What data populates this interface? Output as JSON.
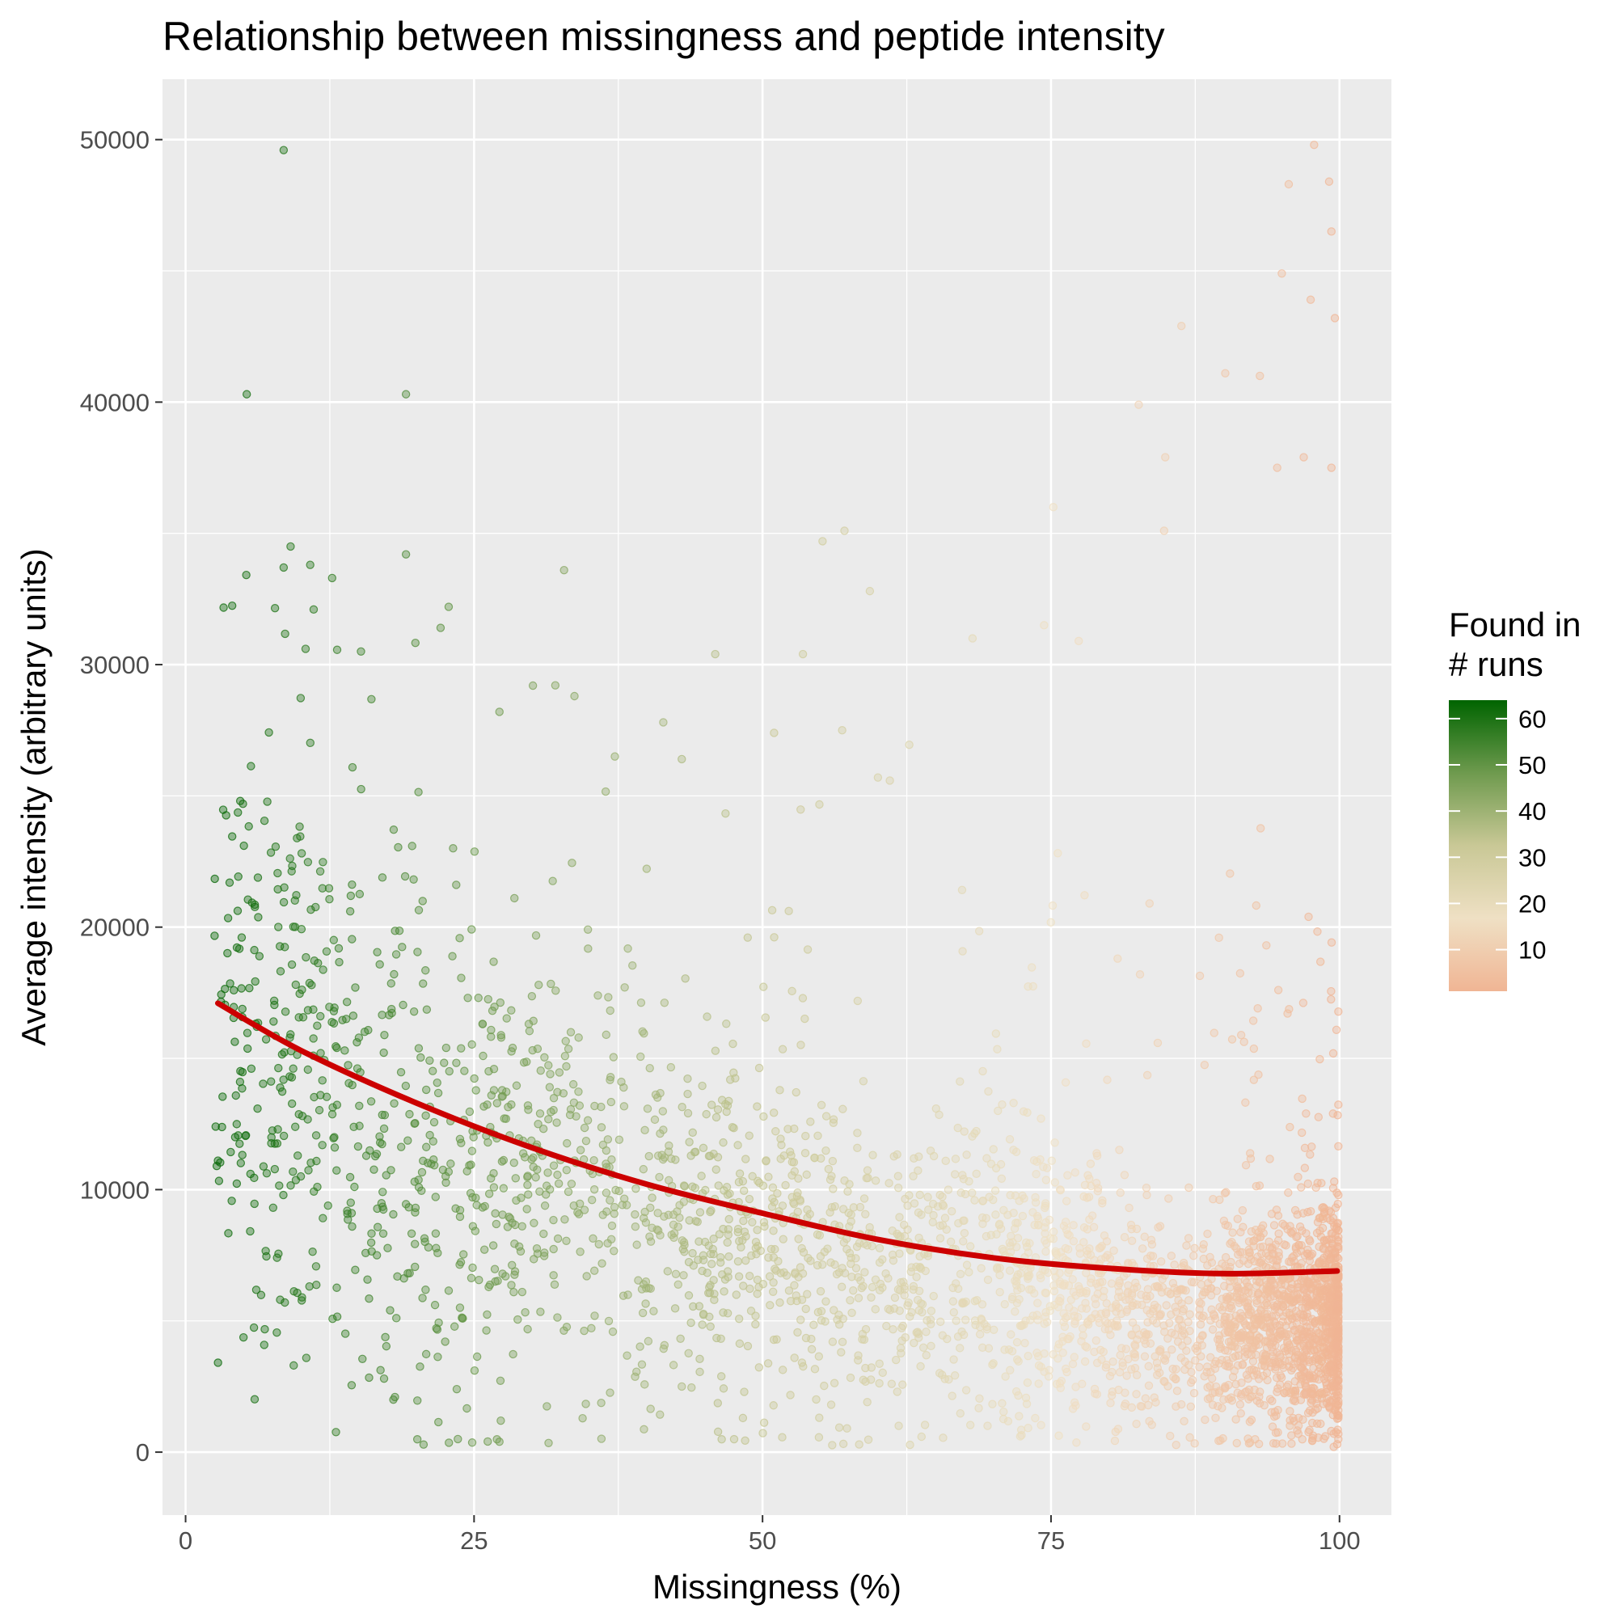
{
  "chart_data": {
    "type": "scatter",
    "title": "Relationship between missingness and peptide intensity",
    "xlabel": "Missingness (%)",
    "ylabel": "Average intensity (arbitrary units)",
    "xlim": [
      -2,
      104.5
    ],
    "ylim": [
      -2400,
      52300
    ],
    "x_ticks": [
      0,
      25,
      50,
      75,
      100
    ],
    "y_ticks": [
      0,
      10000,
      20000,
      30000,
      40000,
      50000
    ],
    "grid": true,
    "background": "#EBEBEB",
    "legend": {
      "title_lines": [
        "Found in",
        "# runs"
      ],
      "position": "right",
      "range": [
        1,
        64
      ],
      "ticks": [
        10,
        20,
        30,
        40,
        50,
        60
      ],
      "colors": [
        "#F0B594",
        "#EFE0C4",
        "#C9C896",
        "#6E9A4E",
        "#006400"
      ]
    },
    "points": {
      "color_encoding": "runs found (green = many, peach = few)",
      "alpha": 0.4,
      "samples": [
        {
          "x": 8.5,
          "y": 49600
        },
        {
          "x": 5.3,
          "y": 40300
        },
        {
          "x": 19.1,
          "y": 40300
        },
        {
          "x": 9.1,
          "y": 34500
        },
        {
          "x": 8.5,
          "y": 33700
        },
        {
          "x": 10.8,
          "y": 33800
        },
        {
          "x": 12.7,
          "y": 33300
        },
        {
          "x": 19.1,
          "y": 34200
        },
        {
          "x": 32.8,
          "y": 33600
        },
        {
          "x": 22.8,
          "y": 32200
        },
        {
          "x": 11.1,
          "y": 32100
        },
        {
          "x": 22.1,
          "y": 31400
        },
        {
          "x": 15.2,
          "y": 30500
        },
        {
          "x": 10.4,
          "y": 30600
        },
        {
          "x": 45.9,
          "y": 30400
        },
        {
          "x": 53.5,
          "y": 30400
        },
        {
          "x": 57.1,
          "y": 35100
        },
        {
          "x": 55.2,
          "y": 34700
        },
        {
          "x": 59.3,
          "y": 32800
        },
        {
          "x": 75.2,
          "y": 36000
        },
        {
          "x": 74.4,
          "y": 31500
        },
        {
          "x": 77.4,
          "y": 30900
        },
        {
          "x": 68.2,
          "y": 31000
        },
        {
          "x": 82.6,
          "y": 39900
        },
        {
          "x": 84.9,
          "y": 37900
        },
        {
          "x": 84.8,
          "y": 35100
        },
        {
          "x": 90.1,
          "y": 41100
        },
        {
          "x": 93.1,
          "y": 41000
        },
        {
          "x": 86.3,
          "y": 42900
        },
        {
          "x": 97.8,
          "y": 49800
        },
        {
          "x": 99.1,
          "y": 48400
        },
        {
          "x": 95.6,
          "y": 48300
        },
        {
          "x": 99.3,
          "y": 46500
        },
        {
          "x": 95.0,
          "y": 44900
        },
        {
          "x": 97.5,
          "y": 43900
        },
        {
          "x": 99.6,
          "y": 43200
        },
        {
          "x": 96.9,
          "y": 37900
        },
        {
          "x": 99.3,
          "y": 37500
        },
        {
          "x": 94.6,
          "y": 37500
        },
        {
          "x": 30.1,
          "y": 29200
        },
        {
          "x": 33.7,
          "y": 28800
        },
        {
          "x": 27.2,
          "y": 28200
        },
        {
          "x": 41.4,
          "y": 27800
        },
        {
          "x": 51.0,
          "y": 27400
        },
        {
          "x": 56.9,
          "y": 27500
        },
        {
          "x": 60.0,
          "y": 25700
        },
        {
          "x": 43.0,
          "y": 26400
        },
        {
          "x": 37.2,
          "y": 26500
        },
        {
          "x": 2.7,
          "y": 10900
        },
        {
          "x": 4.3,
          "y": 12000
        },
        {
          "x": 8.6,
          "y": 5700
        },
        {
          "x": 17.2,
          "y": 2800
        },
        {
          "x": 23.5,
          "y": 2400
        },
        {
          "x": 43.0,
          "y": 2500
        },
        {
          "x": 48.3,
          "y": 1300
        },
        {
          "x": 61.8,
          "y": 1000
        },
        {
          "x": 69.5,
          "y": 1000
        },
        {
          "x": 82.0,
          "y": 1700
        },
        {
          "x": 99.8,
          "y": 300
        },
        {
          "x": 99.5,
          "y": 200
        }
      ]
    },
    "trend_line": {
      "color": "#CC0000",
      "x": [
        2.8,
        10,
        20,
        30,
        40,
        50,
        60,
        70,
        80,
        90,
        99.8
      ],
      "y": [
        17100,
        15300,
        13300,
        11600,
        10200,
        9100,
        8100,
        7400,
        7000,
        6800,
        6900
      ]
    }
  }
}
